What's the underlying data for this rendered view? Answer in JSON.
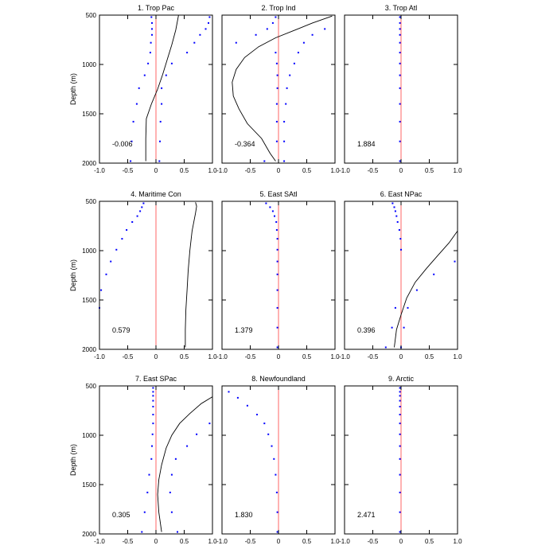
{
  "figure": {
    "colors": {
      "zero_line": "#ff6666",
      "dots": "#0000ff",
      "curve": "#000000",
      "frame": "#000000"
    }
  },
  "chart_data": [
    {
      "type": "scatter",
      "title": "1. Trop Pac",
      "ylabel": "Depth (m)",
      "annotation": "-0.006",
      "xlim": [
        -1,
        1
      ],
      "ylim": [
        2000,
        500
      ],
      "xticks": [
        "-1.0",
        "-0.5",
        "0",
        "0.5",
        "1.0"
      ],
      "yticks": [
        "500",
        "1000",
        "1500",
        "2000"
      ],
      "series": [
        {
          "style": "dots",
          "points": [
            [
              0.95,
              520
            ],
            [
              0.93,
              580
            ],
            [
              0.88,
              640
            ],
            [
              0.78,
              700
            ],
            [
              0.68,
              780
            ],
            [
              0.55,
              880
            ],
            [
              0.28,
              990
            ],
            [
              0.18,
              1110
            ],
            [
              0.1,
              1240
            ],
            [
              0.1,
              1400
            ],
            [
              0.08,
              1580
            ],
            [
              0.07,
              1780
            ],
            [
              0.06,
              1980
            ],
            [
              -0.08,
              520
            ],
            [
              -0.07,
              580
            ],
            [
              -0.07,
              640
            ],
            [
              -0.07,
              700
            ],
            [
              -0.09,
              780
            ],
            [
              -0.1,
              880
            ],
            [
              -0.14,
              990
            ],
            [
              -0.2,
              1110
            ],
            [
              -0.3,
              1240
            ],
            [
              -0.34,
              1400
            ],
            [
              -0.4,
              1580
            ],
            [
              -0.43,
              1780
            ],
            [
              -0.45,
              1980
            ]
          ]
        },
        {
          "style": "line",
          "points": [
            [
              0.4,
              500
            ],
            [
              0.35,
              650
            ],
            [
              0.28,
              800
            ],
            [
              0.2,
              950
            ],
            [
              0.12,
              1100
            ],
            [
              0.03,
              1250
            ],
            [
              -0.08,
              1400
            ],
            [
              -0.17,
              1550
            ],
            [
              -0.18,
              1750
            ],
            [
              -0.18,
              1980
            ]
          ]
        }
      ]
    },
    {
      "type": "scatter",
      "title": "2. Trop Ind",
      "annotation": "-0.364",
      "xlim": [
        -1,
        1
      ],
      "ylim": [
        2000,
        500
      ],
      "xticks": [
        "-1.0",
        "-0.5",
        "0",
        "0.5",
        "1.0"
      ],
      "yticks": [],
      "series": [
        {
          "style": "dots",
          "points": [
            [
              -0.05,
              520
            ],
            [
              -0.1,
              580
            ],
            [
              -0.2,
              640
            ],
            [
              -0.4,
              700
            ],
            [
              -0.75,
              780
            ],
            [
              0.82,
              640
            ],
            [
              0.6,
              700
            ],
            [
              0.45,
              780
            ],
            [
              0.35,
              880
            ],
            [
              0.28,
              990
            ],
            [
              0.2,
              1110
            ],
            [
              0.15,
              1240
            ],
            [
              0.13,
              1400
            ],
            [
              0.1,
              1580
            ],
            [
              0.1,
              1780
            ],
            [
              0.1,
              1980
            ],
            [
              -0.05,
              880
            ],
            [
              -0.03,
              990
            ],
            [
              -0.02,
              1110
            ],
            [
              -0.02,
              1240
            ],
            [
              -0.03,
              1400
            ],
            [
              -0.03,
              1580
            ],
            [
              -0.03,
              1780
            ],
            [
              -0.25,
              1980
            ]
          ]
        },
        {
          "style": "line",
          "points": [
            [
              0.95,
              510
            ],
            [
              0.6,
              580
            ],
            [
              0.3,
              650
            ],
            [
              -0.05,
              730
            ],
            [
              -0.35,
              820
            ],
            [
              -0.6,
              930
            ],
            [
              -0.75,
              1050
            ],
            [
              -0.82,
              1180
            ],
            [
              -0.8,
              1320
            ],
            [
              -0.7,
              1450
            ],
            [
              -0.55,
              1600
            ],
            [
              -0.3,
              1750
            ],
            [
              -0.15,
              1900
            ],
            [
              -0.05,
              1980
            ]
          ]
        }
      ]
    },
    {
      "type": "scatter",
      "title": "3. Trop Atl",
      "annotation": "1.884",
      "xlim": [
        -1,
        1
      ],
      "ylim": [
        2000,
        500
      ],
      "xticks": [
        "-1.0",
        "-0.5",
        "0",
        "0.5",
        "1.0"
      ],
      "yticks": [],
      "series": [
        {
          "style": "dots",
          "points": [
            [
              -0.02,
              520
            ],
            [
              -0.02,
              580
            ],
            [
              -0.02,
              640
            ],
            [
              -0.02,
              700
            ],
            [
              -0.02,
              780
            ],
            [
              -0.02,
              880
            ],
            [
              -0.02,
              990
            ],
            [
              -0.02,
              1110
            ],
            [
              -0.02,
              1240
            ],
            [
              -0.02,
              1400
            ],
            [
              -0.02,
              1580
            ],
            [
              -0.02,
              1780
            ],
            [
              -0.02,
              1980
            ]
          ]
        }
      ]
    },
    {
      "type": "scatter",
      "title": "4. Maritime Con",
      "ylabel": "Depth (m)",
      "annotation": "0.579",
      "xlim": [
        -1,
        1
      ],
      "ylim": [
        2000,
        500
      ],
      "xticks": [
        "-1.0",
        "-0.5",
        "0",
        "0.5",
        "1.0"
      ],
      "yticks": [
        "500",
        "1000",
        "1500",
        "2000"
      ],
      "series": [
        {
          "style": "dots",
          "points": [
            [
              -0.22,
              520
            ],
            [
              -0.25,
              560
            ],
            [
              -0.28,
              600
            ],
            [
              -0.33,
              650
            ],
            [
              -0.42,
              710
            ],
            [
              -0.52,
              790
            ],
            [
              -0.6,
              880
            ],
            [
              -0.7,
              990
            ],
            [
              -0.8,
              1110
            ],
            [
              -0.88,
              1240
            ],
            [
              -0.97,
              1400
            ],
            [
              -1.0,
              1580
            ]
          ]
        },
        {
          "style": "line",
          "points": [
            [
              0.7,
              510
            ],
            [
              0.72,
              550
            ],
            [
              0.7,
              620
            ],
            [
              0.64,
              800
            ],
            [
              0.6,
              1000
            ],
            [
              0.57,
              1200
            ],
            [
              0.55,
              1400
            ],
            [
              0.53,
              1600
            ],
            [
              0.52,
              1800
            ],
            [
              0.52,
              1980
            ]
          ]
        }
      ]
    },
    {
      "type": "scatter",
      "title": "5. East SAtl",
      "annotation": "1.379",
      "xlim": [
        -1,
        1
      ],
      "ylim": [
        2000,
        500
      ],
      "xticks": [
        "-1.0",
        "-0.5",
        "0",
        "0.5",
        "1.0"
      ],
      "yticks": [],
      "series": [
        {
          "style": "dots",
          "points": [
            [
              -0.22,
              520
            ],
            [
              -0.15,
              560
            ],
            [
              -0.1,
              600
            ],
            [
              -0.07,
              650
            ],
            [
              -0.04,
              710
            ],
            [
              -0.03,
              790
            ],
            [
              -0.02,
              880
            ],
            [
              -0.02,
              990
            ],
            [
              -0.02,
              1110
            ],
            [
              -0.02,
              1240
            ],
            [
              -0.02,
              1400
            ],
            [
              -0.02,
              1580
            ],
            [
              -0.02,
              1780
            ],
            [
              -0.02,
              1980
            ]
          ]
        }
      ]
    },
    {
      "type": "scatter",
      "title": "6. East NPac",
      "annotation": "0.396",
      "xlim": [
        -1,
        1
      ],
      "ylim": [
        2000,
        500
      ],
      "xticks": [
        "-1.0",
        "-0.5",
        "0",
        "0.5",
        "1.0"
      ],
      "yticks": [],
      "series": [
        {
          "style": "dots",
          "points": [
            [
              -0.15,
              520
            ],
            [
              -0.12,
              560
            ],
            [
              -0.1,
              600
            ],
            [
              -0.08,
              650
            ],
            [
              -0.06,
              710
            ],
            [
              -0.03,
              790
            ],
            [
              -0.01,
              880
            ],
            [
              0.0,
              990
            ],
            [
              0.95,
              1110
            ],
            [
              0.58,
              1240
            ],
            [
              0.28,
              1400
            ],
            [
              0.12,
              1580
            ],
            [
              0.05,
              1780
            ],
            [
              0.0,
              1980
            ],
            [
              -0.1,
              1580
            ],
            [
              -0.16,
              1780
            ],
            [
              -0.27,
              1980
            ]
          ]
        },
        {
          "style": "line",
          "points": [
            [
              1.0,
              800
            ],
            [
              0.85,
              920
            ],
            [
              0.65,
              1050
            ],
            [
              0.45,
              1180
            ],
            [
              0.25,
              1320
            ],
            [
              0.1,
              1480
            ],
            [
              0.0,
              1650
            ],
            [
              -0.08,
              1800
            ],
            [
              -0.12,
              1980
            ]
          ]
        }
      ]
    },
    {
      "type": "scatter",
      "title": "7. East SPac",
      "ylabel": "Depth (m)",
      "annotation": "0.305",
      "xlim": [
        -1,
        1
      ],
      "ylim": [
        2000,
        500
      ],
      "xticks": [
        "-1.0",
        "-0.5",
        "0",
        "0.5",
        "1.0"
      ],
      "yticks": [
        "500",
        "1000",
        "1500",
        "2000"
      ],
      "series": [
        {
          "style": "dots",
          "points": [
            [
              -0.05,
              520
            ],
            [
              -0.05,
              560
            ],
            [
              -0.05,
              600
            ],
            [
              -0.05,
              650
            ],
            [
              -0.05,
              710
            ],
            [
              -0.05,
              790
            ],
            [
              -0.05,
              880
            ],
            [
              -0.06,
              990
            ],
            [
              -0.07,
              1110
            ],
            [
              -0.08,
              1240
            ],
            [
              -0.12,
              1400
            ],
            [
              -0.15,
              1580
            ],
            [
              -0.2,
              1780
            ],
            [
              -0.25,
              1980
            ],
            [
              0.95,
              880
            ],
            [
              0.72,
              990
            ],
            [
              0.55,
              1110
            ],
            [
              0.35,
              1240
            ],
            [
              0.28,
              1400
            ],
            [
              0.25,
              1580
            ],
            [
              0.28,
              1780
            ],
            [
              0.38,
              1980
            ]
          ]
        },
        {
          "style": "line",
          "points": [
            [
              1.0,
              610
            ],
            [
              0.8,
              680
            ],
            [
              0.6,
              780
            ],
            [
              0.42,
              880
            ],
            [
              0.28,
              1000
            ],
            [
              0.18,
              1130
            ],
            [
              0.1,
              1300
            ],
            [
              0.05,
              1450
            ],
            [
              0.03,
              1600
            ],
            [
              0.05,
              1780
            ],
            [
              0.1,
              1980
            ]
          ]
        }
      ]
    },
    {
      "type": "scatter",
      "title": "8. Newfoundland",
      "annotation": "1.830",
      "xlim": [
        -1,
        1
      ],
      "ylim": [
        2000,
        500
      ],
      "xticks": [
        "-1.0",
        "-0.5",
        "0",
        "0.5",
        "1.0"
      ],
      "yticks": [],
      "series": [
        {
          "style": "dots",
          "points": [
            [
              -0.88,
              560
            ],
            [
              -0.72,
              620
            ],
            [
              -0.55,
              700
            ],
            [
              -0.38,
              790
            ],
            [
              -0.25,
              880
            ],
            [
              -0.18,
              990
            ],
            [
              -0.12,
              1110
            ],
            [
              -0.08,
              1240
            ],
            [
              -0.05,
              1400
            ],
            [
              -0.03,
              1580
            ],
            [
              -0.02,
              1780
            ],
            [
              -0.02,
              1980
            ]
          ]
        }
      ]
    },
    {
      "type": "scatter",
      "title": "9. Arctic",
      "annotation": "2.471",
      "xlim": [
        -1,
        1
      ],
      "ylim": [
        2000,
        500
      ],
      "xticks": [
        "-1.0",
        "-0.5",
        "0",
        "0.5",
        "1.0"
      ],
      "yticks": [],
      "series": [
        {
          "style": "dots",
          "points": [
            [
              -0.02,
              520
            ],
            [
              -0.02,
              560
            ],
            [
              -0.02,
              600
            ],
            [
              -0.02,
              650
            ],
            [
              -0.02,
              710
            ],
            [
              -0.02,
              790
            ],
            [
              -0.02,
              880
            ],
            [
              -0.02,
              990
            ],
            [
              -0.02,
              1110
            ],
            [
              -0.02,
              1240
            ],
            [
              -0.02,
              1400
            ],
            [
              -0.02,
              1580
            ],
            [
              -0.02,
              1780
            ],
            [
              -0.02,
              1980
            ]
          ]
        }
      ]
    }
  ]
}
